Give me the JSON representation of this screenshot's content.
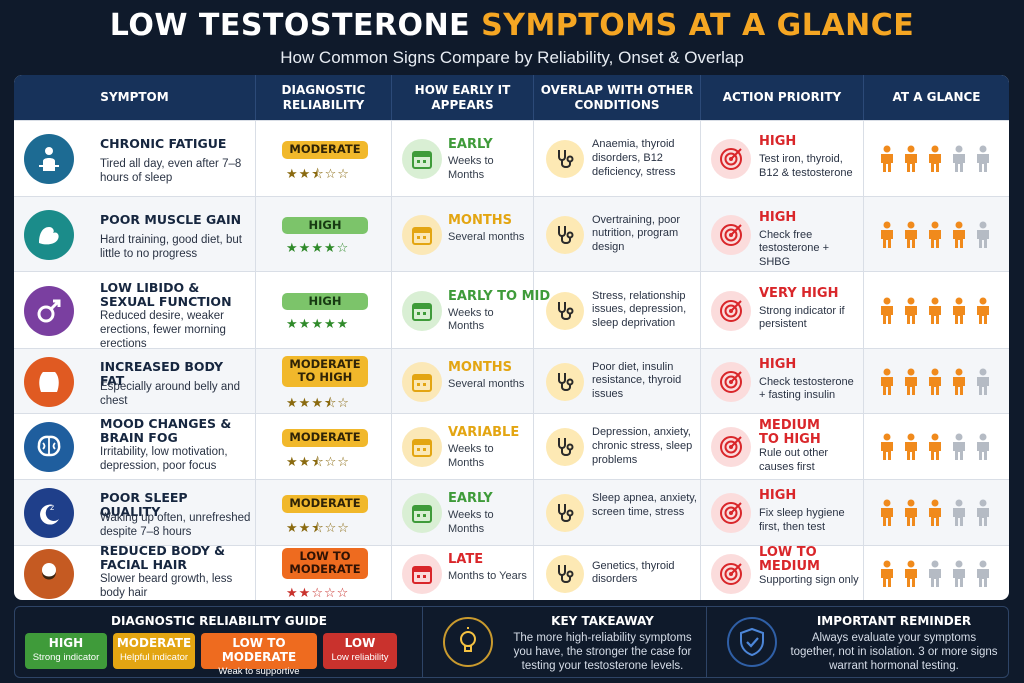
{
  "header": {
    "title_part1": "LOW TESTOSTERONE",
    "title_part2": "SYMPTOMS AT A GLANCE",
    "subtitle": "How Common Signs Compare by Reliability, Onset & Overlap"
  },
  "columns": [
    "SYMPTOM",
    "DIAGNOSTIC RELIABILITY",
    "HOW EARLY IT APPEARS",
    "OVERLAP WITH OTHER CONDITIONS",
    "ACTION PRIORITY",
    "AT A GLANCE"
  ],
  "colors": {
    "header_bg": "#17325a",
    "accent_orange": "#f5a623",
    "priority_red": "#d9262a",
    "reliability_high": "#3f9b3a",
    "reliability_moderate": "#e3a512",
    "reliability_low_to_moderate": "#ee6b1f",
    "reliability_low": "#c9322d"
  },
  "rows": [
    {
      "icon": "tired-person-icon",
      "title": "CHRONIC FATIGUE",
      "description": "Tired all day, even after 7–8 hours of sleep",
      "reliability": "MODERATE",
      "reliability_level": "moderate",
      "stars": 2.5,
      "onset": "EARLY",
      "onset_color": "#3f9b3a",
      "onset_sub": "Weeks to Months",
      "overlap": "Anaemia, thyroid disorders, B12 deficiency, stress",
      "priority": "HIGH",
      "priority_sub": "Test iron, thyroid, B12 & testosterone",
      "glance": 3
    },
    {
      "icon": "flexed-arm-icon",
      "title": "POOR MUSCLE GAIN",
      "description": "Hard training, good diet, but little to no progress",
      "reliability": "HIGH",
      "reliability_level": "high",
      "stars": 4,
      "onset": "MONTHS",
      "onset_color": "#e3a512",
      "onset_sub": "Several months",
      "overlap": "Overtraining, poor nutrition, program design",
      "priority": "HIGH",
      "priority_sub": "Check free testosterone + SHBG",
      "glance": 4
    },
    {
      "icon": "male-symbol-icon",
      "title": "LOW LIBIDO & SEXUAL FUNCTION",
      "description": "Reduced desire, weaker erections, fewer morning erections",
      "reliability": "HIGH",
      "reliability_level": "high",
      "stars": 5,
      "onset": "EARLY TO MID",
      "onset_color": "#3f9b3a",
      "onset_sub": "Weeks to Months",
      "overlap": "Stress, relationship issues, depression, sleep deprivation",
      "priority": "VERY HIGH",
      "priority_sub": "Strong indicator if persistent",
      "glance": 5
    },
    {
      "icon": "body-fat-icon",
      "title": "INCREASED BODY FAT",
      "description": "Especially around belly and chest",
      "reliability": "MODERATE TO HIGH",
      "reliability_level": "moderate",
      "stars": 3.5,
      "onset": "MONTHS",
      "onset_color": "#e3a512",
      "onset_sub": "Several months",
      "overlap": "Poor diet, insulin resistance, thyroid issues",
      "priority": "HIGH",
      "priority_sub": "Check testosterone + fasting insulin",
      "glance": 4
    },
    {
      "icon": "brain-icon",
      "title": "MOOD CHANGES & BRAIN FOG",
      "description": "Irritability, low motivation, depression, poor focus",
      "reliability": "MODERATE",
      "reliability_level": "moderate",
      "stars": 2.5,
      "onset": "VARIABLE",
      "onset_color": "#e3a512",
      "onset_sub": "Weeks to Months",
      "overlap": "Depression, anxiety, chronic stress, sleep problems",
      "priority": "MEDIUM TO HIGH",
      "priority_sub": "Rule out other causes first",
      "glance": 3
    },
    {
      "icon": "moon-sleep-icon",
      "title": "POOR SLEEP QUALITY",
      "description": "Waking up often, unrefreshed despite 7–8 hours",
      "reliability": "MODERATE",
      "reliability_level": "moderate",
      "stars": 2.5,
      "onset": "EARLY",
      "onset_color": "#3f9b3a",
      "onset_sub": "Weeks to Months",
      "overlap": "Sleep apnea, anxiety, screen time, stress",
      "priority": "HIGH",
      "priority_sub": "Fix sleep hygiene first, then test",
      "glance": 3
    },
    {
      "icon": "bearded-face-icon",
      "title": "REDUCED BODY & FACIAL HAIR",
      "description": "Slower beard growth, less body hair",
      "reliability": "LOW TO MODERATE",
      "reliability_level": "low_to_moderate",
      "stars": 2,
      "onset": "LATE",
      "onset_color": "#d9262a",
      "onset_sub": "Months to Years",
      "overlap": "Genetics, thyroid disorders",
      "priority": "LOW TO MEDIUM",
      "priority_sub": "Supporting sign only",
      "glance": 2
    }
  ],
  "footer": {
    "guide_title": "DIAGNOSTIC RELIABILITY GUIDE",
    "guide": [
      {
        "label": "HIGH",
        "sub": "Strong indicator",
        "color": "#3f9b3a"
      },
      {
        "label": "MODERATE",
        "sub": "Helpful indicator",
        "color": "#e3a512"
      },
      {
        "label": "LOW TO MODERATE",
        "sub": "Weak to supportive",
        "color": "#ee6b1f"
      },
      {
        "label": "LOW",
        "sub": "Low reliability",
        "color": "#c9322d"
      }
    ],
    "takeaway_title": "KEY TAKEAWAY",
    "takeaway_text": "The more high-reliability symptoms you have, the stronger the case for testing your testosterone levels.",
    "reminder_title": "IMPORTANT REMINDER",
    "reminder_text": "Always evaluate your symptoms together, not in isolation. 3 or more signs warrant hormonal testing."
  }
}
